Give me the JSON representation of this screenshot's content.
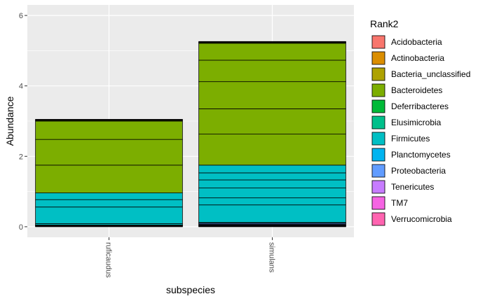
{
  "chart_data": {
    "type": "bar",
    "stacked": true,
    "categories": [
      "ruficaudus",
      "simulans"
    ],
    "xlabel": "subspecies",
    "ylabel": "Abundance",
    "ylim": [
      -0.3,
      6.3
    ],
    "yticks": [
      0,
      2,
      4,
      6
    ],
    "grid": true,
    "legend": {
      "title": "Rank2",
      "position": "right",
      "entries": [
        {
          "name": "Acidobacteria",
          "color": "#F8766D"
        },
        {
          "name": "Actinobacteria",
          "color": "#DB8E00"
        },
        {
          "name": "Bacteria_unclassified",
          "color": "#AEA200"
        },
        {
          "name": "Bacteroidetes",
          "color": "#7CAE00"
        },
        {
          "name": "Deferribacteres",
          "color": "#00BA38"
        },
        {
          "name": "Elusimicrobia",
          "color": "#00C08B"
        },
        {
          "name": "Firmicutes",
          "color": "#00BFC4"
        },
        {
          "name": "Planctomycetes",
          "color": "#00B4F0"
        },
        {
          "name": "Proteobacteria",
          "color": "#619CFF"
        },
        {
          "name": "Tenericutes",
          "color": "#C77CFF"
        },
        {
          "name": "TM7",
          "color": "#F564E3"
        },
        {
          "name": "Verrucomicrobia",
          "color": "#FF64B0"
        }
      ]
    },
    "stacks": [
      {
        "category": "ruficaudus",
        "segments": [
          {
            "rank": "Verrucomicrobia",
            "value": 0.01
          },
          {
            "rank": "TM7",
            "value": 0.01
          },
          {
            "rank": "Tenericutes",
            "value": 0.01
          },
          {
            "rank": "Proteobacteria",
            "value": 0.01
          },
          {
            "rank": "Planctomycetes",
            "value": 0.01
          },
          {
            "rank": "Firmicutes",
            "value": 0.04
          },
          {
            "rank": "Firmicutes",
            "value": 0.47
          },
          {
            "rank": "Firmicutes",
            "value": 0.21
          },
          {
            "rank": "Firmicutes",
            "value": 0.19
          },
          {
            "rank": "Bacteroidetes",
            "value": 0.79
          },
          {
            "rank": "Bacteroidetes",
            "value": 0.73
          },
          {
            "rank": "Bacteroidetes",
            "value": 0.52
          },
          {
            "rank": "Bacteroidetes",
            "value": 0.02
          },
          {
            "rank": "Bacteria_unclassified",
            "value": 0.01
          },
          {
            "rank": "Actinobacteria",
            "value": 0.01
          },
          {
            "rank": "Acidobacteria",
            "value": 0.01
          }
        ]
      },
      {
        "category": "simulans",
        "segments": [
          {
            "rank": "Verrucomicrobia",
            "value": 0.01
          },
          {
            "rank": "TM7",
            "value": 0.01
          },
          {
            "rank": "Tenericutes",
            "value": 0.01
          },
          {
            "rank": "Proteobacteria",
            "value": 0.02
          },
          {
            "rank": "Proteobacteria",
            "value": 0.02
          },
          {
            "rank": "Proteobacteria",
            "value": 0.03
          },
          {
            "rank": "Planctomycetes",
            "value": 0.01
          },
          {
            "rank": "Firmicutes",
            "value": 0.01
          },
          {
            "rank": "Firmicutes",
            "value": 0.5
          },
          {
            "rank": "Firmicutes",
            "value": 0.2
          },
          {
            "rank": "Firmicutes",
            "value": 0.28
          },
          {
            "rank": "Firmicutes",
            "value": 0.23
          },
          {
            "rank": "Firmicutes",
            "value": 0.2
          },
          {
            "rank": "Firmicutes",
            "value": 0.22
          },
          {
            "rank": "Bacteroidetes",
            "value": 0.88
          },
          {
            "rank": "Bacteroidetes",
            "value": 0.72
          },
          {
            "rank": "Bacteroidetes",
            "value": 0.77
          },
          {
            "rank": "Bacteroidetes",
            "value": 0.61
          },
          {
            "rank": "Bacteroidetes",
            "value": 0.48
          },
          {
            "rank": "Bacteroidetes",
            "value": 0.02
          },
          {
            "rank": "Bacteria_unclassified",
            "value": 0.01
          },
          {
            "rank": "Actinobacteria",
            "value": 0.01
          },
          {
            "rank": "Acidobacteria",
            "value": 0.01
          }
        ]
      }
    ]
  }
}
